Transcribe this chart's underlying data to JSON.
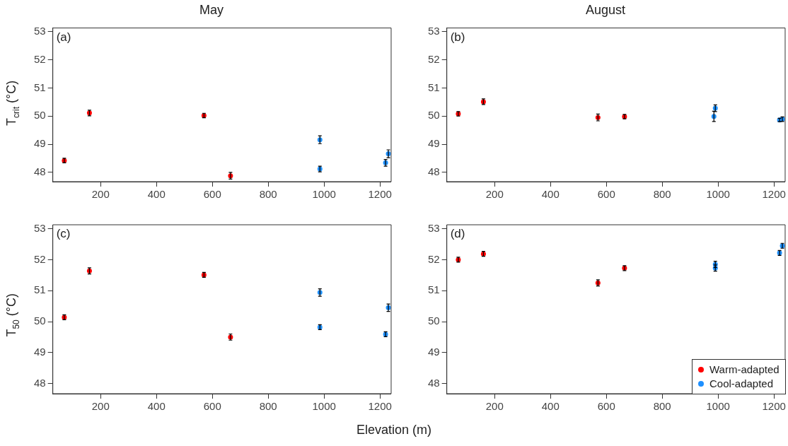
{
  "chart_data": [
    {
      "type": "scatter",
      "title": "May",
      "ylabel": "T$_{crit}$ (°C)",
      "annotations": [
        "(a)"
      ],
      "xlim": [
        29,
        1240
      ],
      "xticks": [
        200,
        400,
        600,
        800,
        1000,
        1200
      ],
      "ylim": [
        47.67,
        53.13
      ],
      "yticks": [
        48,
        49,
        50,
        51,
        52,
        53
      ],
      "grid": false,
      "legend": false,
      "marker": "circle",
      "series": [
        {
          "color": "#ff0000",
          "x": [
            70,
            160,
            570,
            665
          ],
          "values": [
            48.42,
            50.11,
            50.02,
            47.88
          ],
          "errors": [
            0.08,
            0.1,
            0.08,
            0.12
          ]
        },
        {
          "color": "#1e90ff",
          "x": [
            985,
            985,
            1220,
            1230
          ],
          "values": [
            49.16,
            48.12,
            48.34,
            48.66
          ],
          "errors": [
            0.14,
            0.1,
            0.12,
            0.14
          ]
        }
      ]
    },
    {
      "type": "scatter",
      "title": "August",
      "annotations": [
        "(b)"
      ],
      "xlim": [
        29,
        1240
      ],
      "xticks": [
        200,
        400,
        600,
        800,
        1000,
        1200
      ],
      "ylim": [
        47.67,
        53.13
      ],
      "yticks": [
        48,
        49,
        50,
        51,
        52,
        53
      ],
      "grid": false,
      "legend": false,
      "marker": "circle",
      "series": [
        {
          "color": "#ff0000",
          "x": [
            70,
            160,
            570,
            665
          ],
          "values": [
            50.08,
            50.51,
            49.95,
            49.98
          ],
          "errors": [
            0.08,
            0.1,
            0.12,
            0.08
          ]
        },
        {
          "color": "#1e90ff",
          "x": [
            990,
            985,
            1220,
            1230
          ],
          "values": [
            50.28,
            49.99,
            49.86,
            49.89
          ],
          "errors": [
            0.12,
            0.18,
            0.06,
            0.08
          ]
        }
      ]
    },
    {
      "type": "scatter",
      "ylabel": "T$_{50}$ (°C)",
      "xlabel": "Elevation (m)",
      "annotations": [
        "(c)"
      ],
      "xlim": [
        29,
        1240
      ],
      "xticks": [
        200,
        400,
        600,
        800,
        1000,
        1200
      ],
      "ylim": [
        47.67,
        53.13
      ],
      "yticks": [
        48,
        49,
        50,
        51,
        52,
        53
      ],
      "grid": false,
      "legend": false,
      "marker": "circle",
      "series": [
        {
          "color": "#ff0000",
          "x": [
            70,
            160,
            570,
            665
          ],
          "values": [
            50.14,
            51.64,
            51.51,
            49.5
          ],
          "errors": [
            0.08,
            0.1,
            0.08,
            0.1
          ]
        },
        {
          "color": "#1e90ff",
          "x": [
            985,
            985,
            1220,
            1230
          ],
          "values": [
            50.94,
            49.82,
            49.59,
            50.45
          ],
          "errors": [
            0.12,
            0.08,
            0.08,
            0.12
          ]
        }
      ]
    },
    {
      "type": "scatter",
      "annotations": [
        "(d)"
      ],
      "xlim": [
        29,
        1240
      ],
      "xticks": [
        200,
        400,
        600,
        800,
        1000,
        1200
      ],
      "ylim": [
        47.67,
        53.13
      ],
      "yticks": [
        48,
        49,
        50,
        51,
        52,
        53
      ],
      "grid": false,
      "legend": "bottom right",
      "marker": "circle",
      "series": [
        {
          "name": "Warm-adapted",
          "color": "#ff0000",
          "x": [
            70,
            160,
            570,
            665
          ],
          "values": [
            52.0,
            52.19,
            51.25,
            51.73
          ],
          "errors": [
            0.08,
            0.08,
            0.1,
            0.08
          ]
        },
        {
          "name": "Cool-adapted",
          "color": "#1e90ff",
          "x": [
            990,
            990,
            1220,
            1230
          ],
          "values": [
            51.85,
            51.73,
            52.22,
            52.45
          ],
          "errors": [
            0.1,
            0.1,
            0.08,
            0.08
          ]
        }
      ]
    }
  ]
}
